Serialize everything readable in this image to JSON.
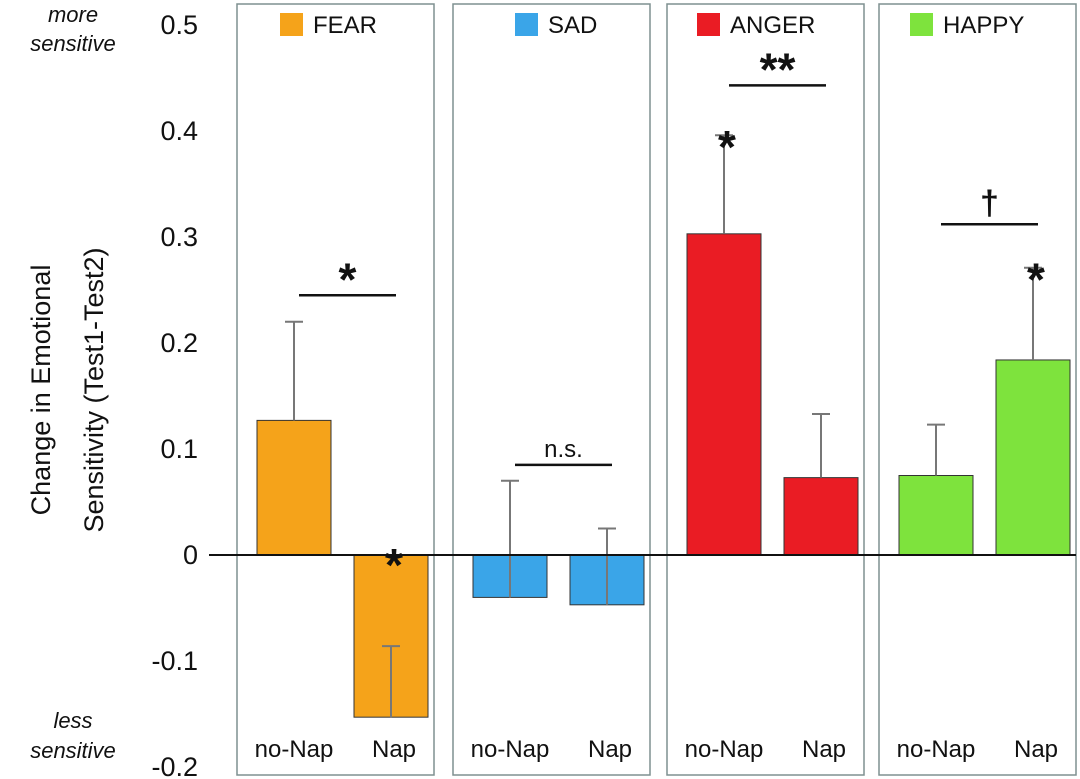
{
  "chart_data": {
    "type": "bar",
    "ylabel_lines": [
      "Change in Emotional",
      "Sensitivity (Test1-Test2)"
    ],
    "ylim": [
      -0.2,
      0.5
    ],
    "yticks": [
      {
        "value": 0.5,
        "label": "0.5"
      },
      {
        "value": 0.4,
        "label": "0.4"
      },
      {
        "value": 0.3,
        "label": "0.3"
      },
      {
        "value": 0.2,
        "label": "0.2"
      },
      {
        "value": 0.1,
        "label": "0.1"
      },
      {
        "value": 0,
        "label": "0"
      },
      {
        "value": -0.1,
        "label": "-0.1"
      },
      {
        "value": -0.2,
        "label": "-0.2"
      }
    ],
    "top_note": [
      "more",
      "sensitive"
    ],
    "bottom_note": [
      "less",
      "sensitive"
    ],
    "categories": [
      "no-Nap",
      "Nap"
    ],
    "panels": [
      {
        "emotion": "FEAR",
        "color": "#f5a31a",
        "bars": [
          {
            "condition": "no-Nap",
            "value": 0.127,
            "error": 0.093,
            "star": ""
          },
          {
            "condition": "Nap",
            "value": -0.153,
            "error": 0.067,
            "star": "*"
          }
        ],
        "comparison": {
          "label": "*",
          "y": 0.245
        }
      },
      {
        "emotion": "SAD",
        "color": "#3aa5e8",
        "bars": [
          {
            "condition": "no-Nap",
            "value": -0.04,
            "error": 0.11,
            "star": ""
          },
          {
            "condition": "Nap",
            "value": -0.047,
            "error": 0.072,
            "star": ""
          }
        ],
        "comparison": {
          "label": "n.s.",
          "y": 0.085
        }
      },
      {
        "emotion": "ANGER",
        "color": "#ea1c24",
        "bars": [
          {
            "condition": "no-Nap",
            "value": 0.303,
            "error": 0.093,
            "star": "*"
          },
          {
            "condition": "Nap",
            "value": 0.073,
            "error": 0.06,
            "star": ""
          }
        ],
        "comparison": {
          "label": "**",
          "y": 0.443
        }
      },
      {
        "emotion": "HAPPY",
        "color": "#7ee33d",
        "bars": [
          {
            "condition": "no-Nap",
            "value": 0.075,
            "error": 0.048,
            "star": ""
          },
          {
            "condition": "Nap",
            "value": 0.184,
            "error": 0.087,
            "star": "*"
          }
        ],
        "comparison": {
          "label": "†",
          "y": 0.312
        }
      }
    ]
  }
}
